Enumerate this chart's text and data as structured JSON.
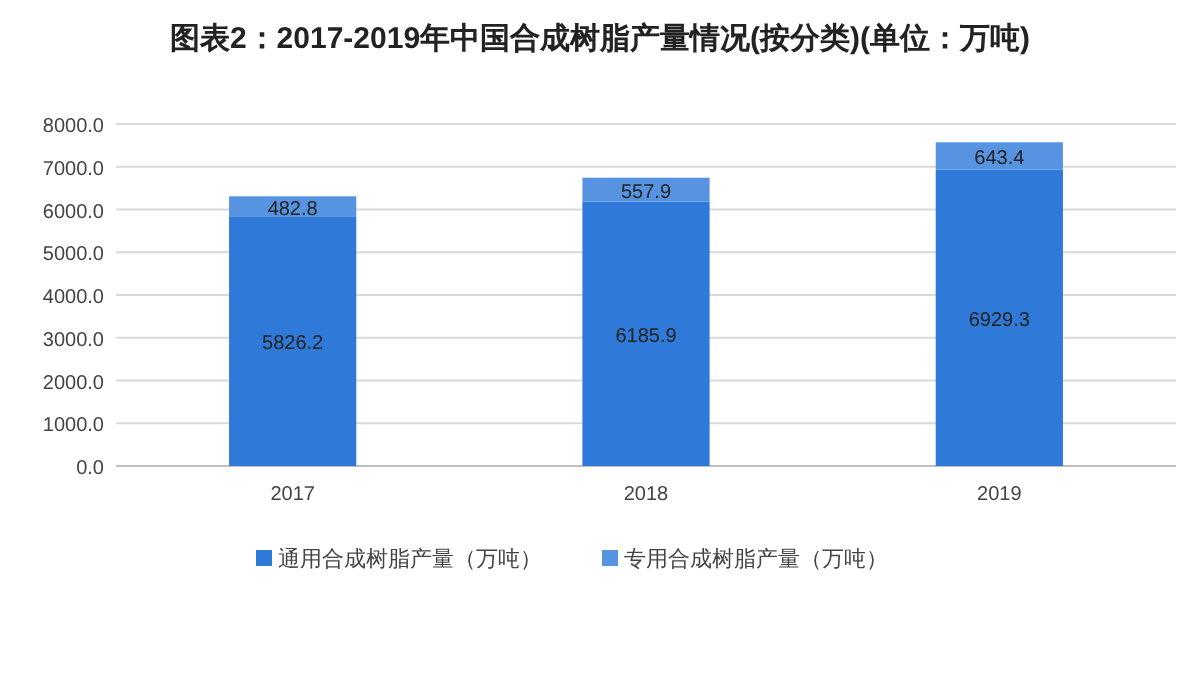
{
  "chart_data": {
    "type": "bar",
    "stacked": true,
    "title": "图表2：2017-2019年中国合成树脂产量情况(按分类)(单位：万吨)",
    "categories": [
      "2017",
      "2018",
      "2019"
    ],
    "series": [
      {
        "name": "通用合成树脂产量（万吨）",
        "color": "#2f7ad8",
        "values": [
          5826.2,
          6185.9,
          6929.3
        ]
      },
      {
        "name": "专用合成树脂产量（万吨）",
        "color": "#5694e2",
        "values": [
          482.8,
          557.9,
          643.4
        ]
      }
    ],
    "ylim": [
      0,
      8000
    ],
    "yticks": [
      {
        "value": 0,
        "label": "0.0"
      },
      {
        "value": 1000,
        "label": "1000.0"
      },
      {
        "value": 2000,
        "label": "2000.0"
      },
      {
        "value": 3000,
        "label": "3000.0"
      },
      {
        "value": 4000,
        "label": "4000.0"
      },
      {
        "value": 5000,
        "label": "5000.0"
      },
      {
        "value": 6000,
        "label": "6000.0"
      },
      {
        "value": 7000,
        "label": "7000.0"
      },
      {
        "value": 8000,
        "label": "8000.0"
      }
    ],
    "grid": "y",
    "legend": "bottom",
    "data_labels": true
  }
}
